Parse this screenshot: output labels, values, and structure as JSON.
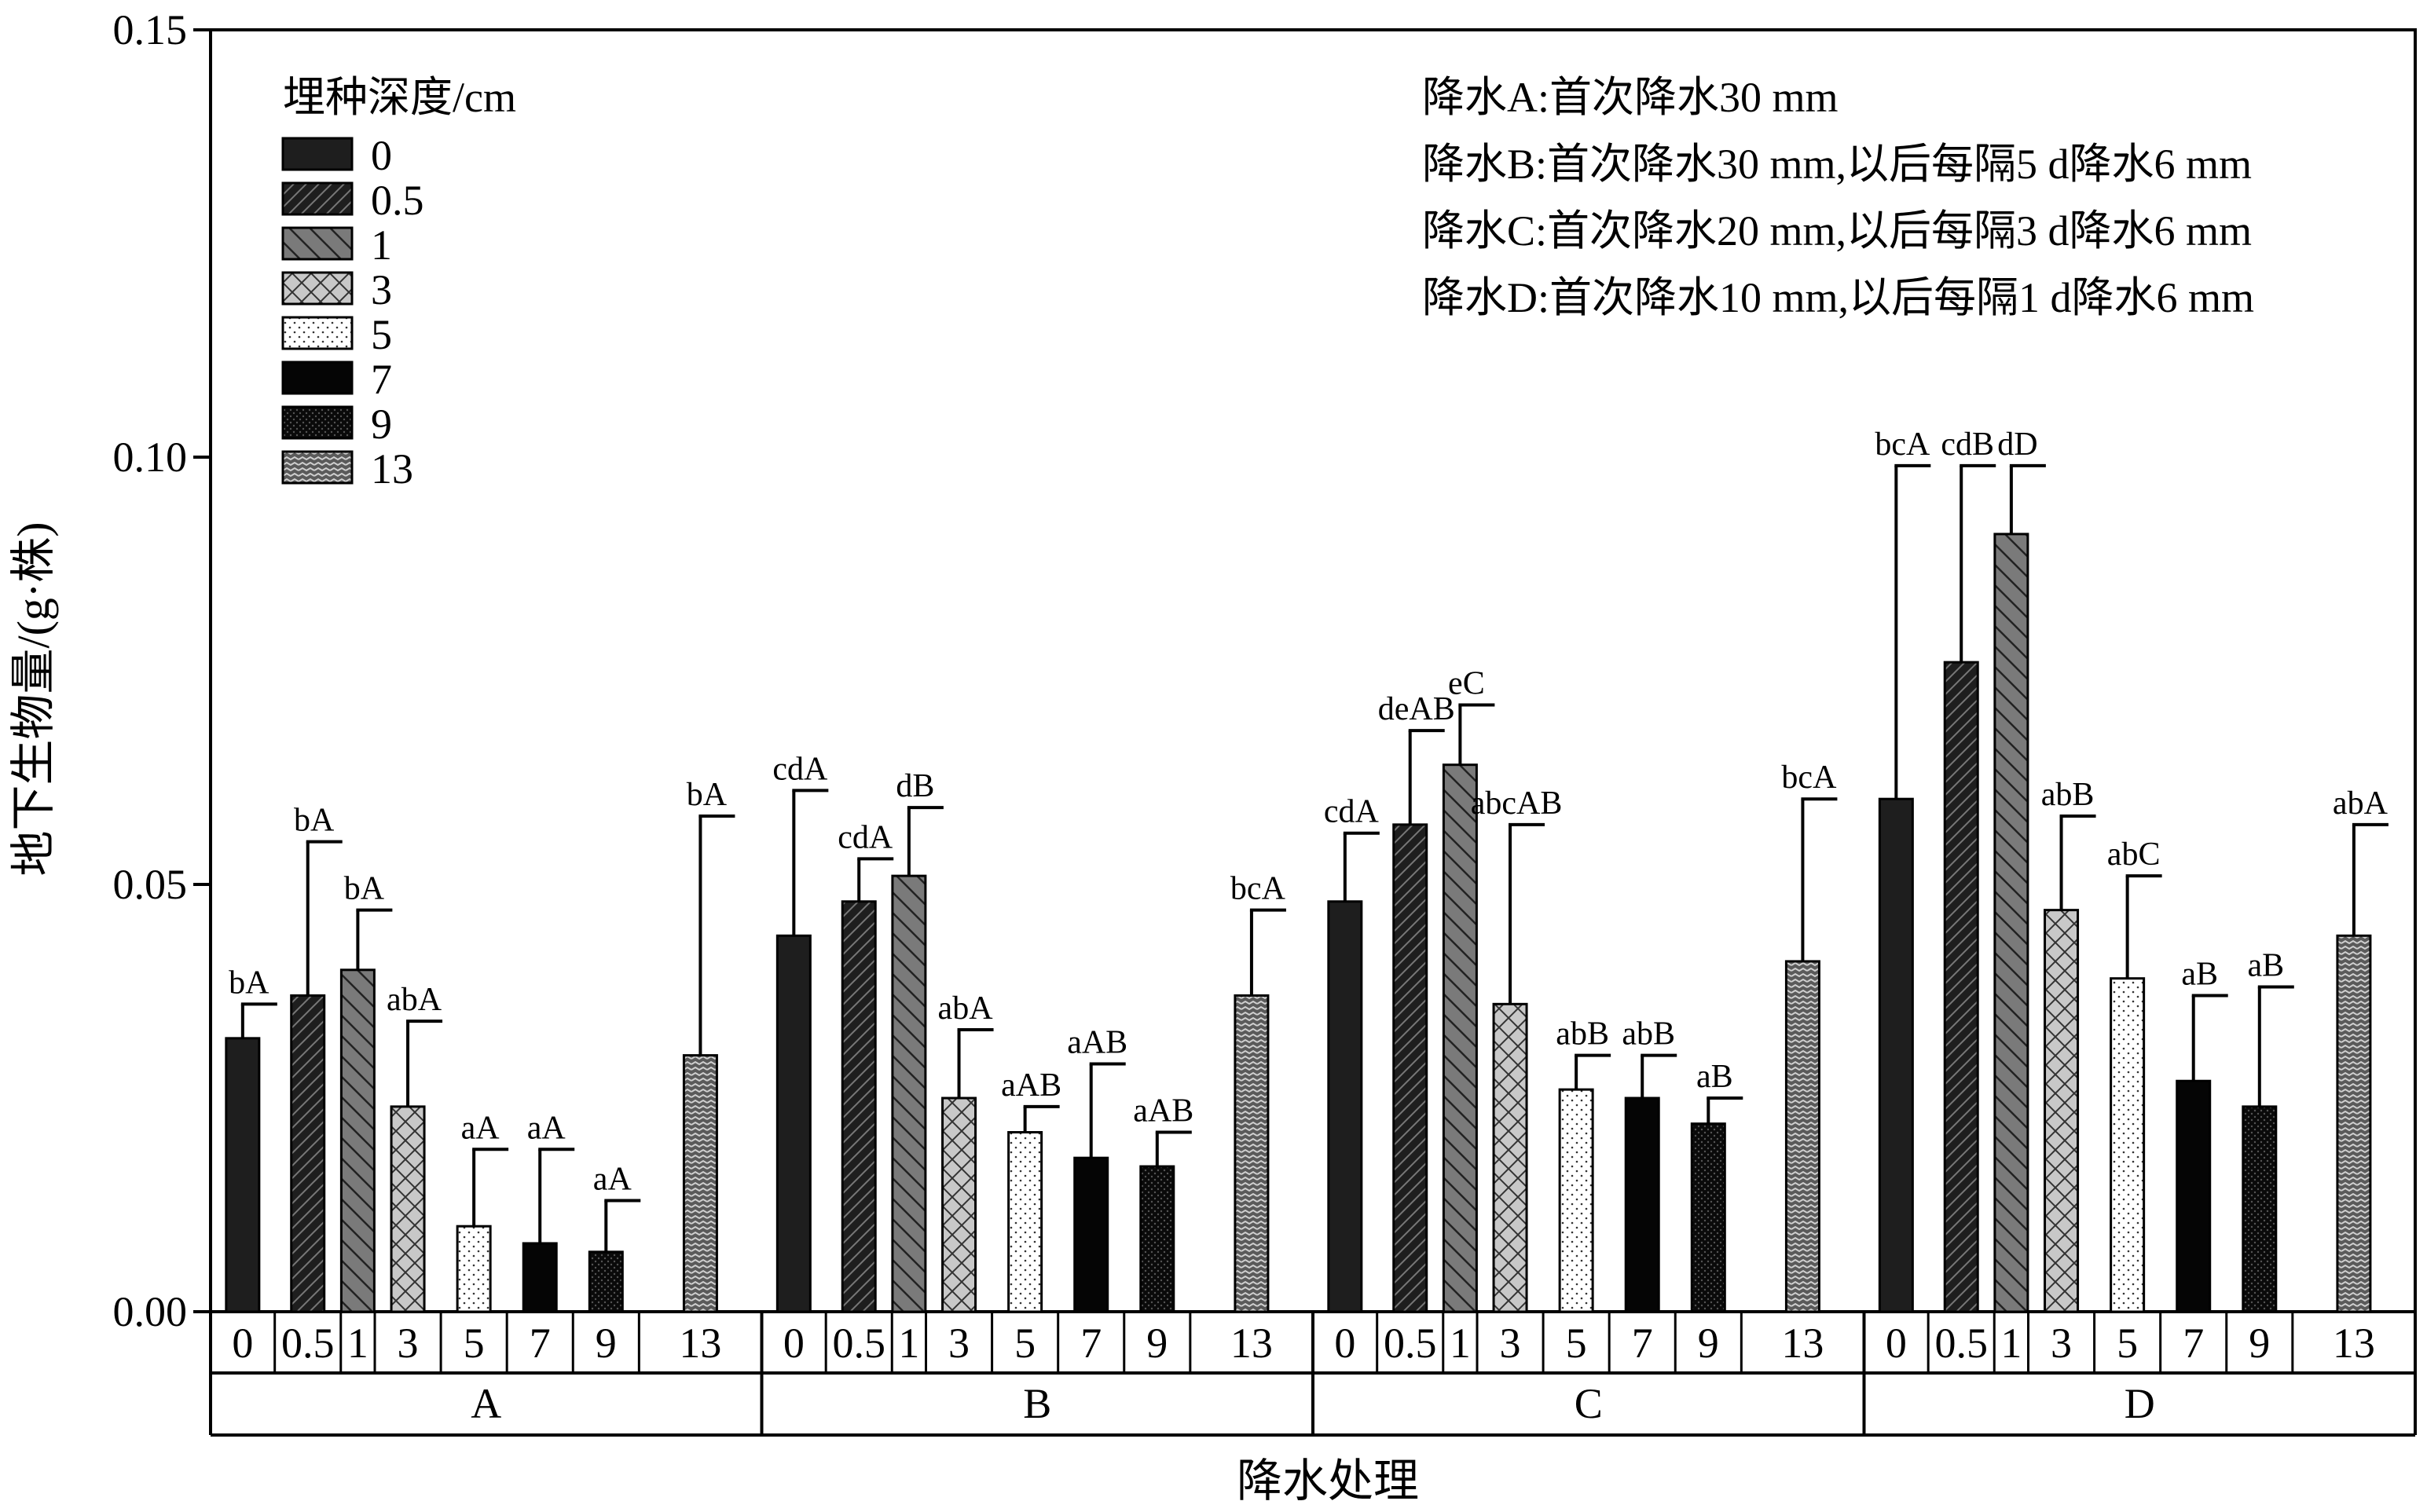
{
  "chart_data": {
    "type": "bar",
    "ylabel": "地下生物量/(g·株)",
    "xlabel": "降水处理",
    "ylim": [
      0,
      0.15
    ],
    "yticks": [
      "0.00",
      "0.05",
      "0.10",
      "0.15"
    ],
    "groups": [
      "A",
      "B",
      "C",
      "D"
    ],
    "categories": [
      "0",
      "0.5",
      "1",
      "3",
      "5",
      "7",
      "9",
      "13"
    ],
    "legend": {
      "title": "埋种深度/cm",
      "position": "top-left",
      "entries": [
        "0",
        "0.5",
        "1",
        "3",
        "5",
        "7",
        "9",
        "13"
      ]
    },
    "notes": [
      "降水A:首次降水30 mm",
      "降水B:首次降水30 mm,以后每隔5 d降水6 mm",
      "降水C:首次降水20 mm,以后每隔3 d降水6 mm",
      "降水D:首次降水10 mm,以后每隔1 d降水6 mm"
    ],
    "grid": false,
    "series": [
      {
        "group": "A",
        "values": [
          0.032,
          0.037,
          0.04,
          0.024,
          0.01,
          0.008,
          0.007,
          0.03
        ],
        "errors": [
          0.004,
          0.018,
          0.007,
          0.01,
          0.009,
          0.011,
          0.006,
          0.028
        ],
        "labels": [
          "bA",
          "bA",
          "bA",
          "abA",
          "aA",
          "aA",
          "aA",
          "bA"
        ]
      },
      {
        "group": "B",
        "values": [
          0.044,
          0.048,
          0.051,
          0.025,
          0.021,
          0.018,
          0.017,
          0.037
        ],
        "errors": [
          0.017,
          0.005,
          0.008,
          0.008,
          0.003,
          0.011,
          0.004,
          0.01
        ],
        "labels": [
          "cdA",
          "cdA",
          "dB",
          "abA",
          "aAB",
          "aAB",
          "aAB",
          "bcA"
        ]
      },
      {
        "group": "C",
        "values": [
          0.048,
          0.057,
          0.064,
          0.036,
          0.026,
          0.025,
          0.022,
          0.041
        ],
        "errors": [
          0.008,
          0.011,
          0.007,
          0.021,
          0.004,
          0.005,
          0.003,
          0.019
        ],
        "labels": [
          "cdA",
          "deAB",
          "eC",
          "abcAB",
          "abB",
          "abB",
          "aB",
          "bcA"
        ]
      },
      {
        "group": "D",
        "values": [
          0.06,
          0.076,
          0.091,
          0.047,
          0.039,
          0.027,
          0.024,
          0.044
        ],
        "errors": [
          0.039,
          0.023,
          0.008,
          0.011,
          0.012,
          0.01,
          0.014,
          0.013
        ],
        "labels": [
          "bcA",
          "cdB",
          "dD",
          "abB",
          "abC",
          "aB",
          "aB",
          "abA"
        ]
      }
    ]
  }
}
